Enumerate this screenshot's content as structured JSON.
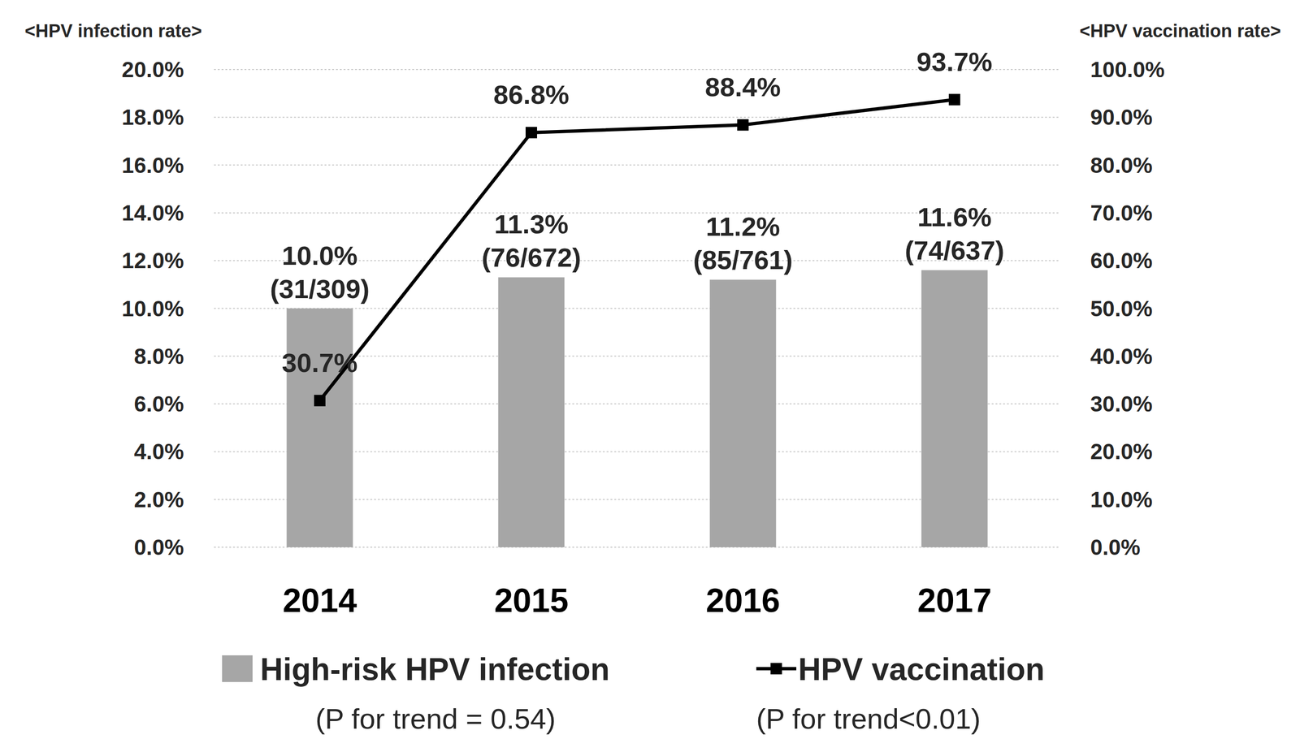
{
  "chart_data": {
    "type": "bar",
    "y_label": "<HPV infection rate>",
    "y2_label": "<HPV vaccination rate>",
    "categories": [
      "2014",
      "2015",
      "2016",
      "2017"
    ],
    "ylim": [
      0,
      20
    ],
    "yticks": [
      {
        "value": 0,
        "label": "0.0%"
      },
      {
        "value": 2,
        "label": "2.0%"
      },
      {
        "value": 4,
        "label": "4.0%"
      },
      {
        "value": 6,
        "label": "6.0%"
      },
      {
        "value": 8,
        "label": "8.0%"
      },
      {
        "value": 10,
        "label": "10.0%"
      },
      {
        "value": 12,
        "label": "12.0%"
      },
      {
        "value": 14,
        "label": "14.0%"
      },
      {
        "value": 16,
        "label": "16.0%"
      },
      {
        "value": 18,
        "label": "18.0%"
      },
      {
        "value": 20,
        "label": "20.0%"
      }
    ],
    "y2lim": [
      0,
      100
    ],
    "y2ticks": [
      {
        "value": 0,
        "label": "0.0%"
      },
      {
        "value": 10,
        "label": "10.0%"
      },
      {
        "value": 20,
        "label": "20.0%"
      },
      {
        "value": 30,
        "label": "30.0%"
      },
      {
        "value": 40,
        "label": "40.0%"
      },
      {
        "value": 50,
        "label": "50.0%"
      },
      {
        "value": 60,
        "label": "60.0%"
      },
      {
        "value": 70,
        "label": "70.0%"
      },
      {
        "value": 80,
        "label": "80.0%"
      },
      {
        "value": 90,
        "label": "90.0%"
      },
      {
        "value": 100,
        "label": "100.0%"
      }
    ],
    "grid": true,
    "data_labels": true,
    "legend": "bottom",
    "series": [
      {
        "name": "High-risk HPV infection",
        "type": "bar",
        "color": "#a6a6a6",
        "values": [
          10.0,
          11.3,
          11.2,
          11.6
        ],
        "value_labels": [
          "10.0%",
          "11.3%",
          "11.2%",
          "11.6%"
        ],
        "fractions": [
          "(31/309)",
          "(76/672)",
          "(85/761)",
          "(74/637)"
        ],
        "p_trend": "(P for trend = 0.54)"
      },
      {
        "name": "HPV vaccination",
        "type": "line",
        "axis": "y2",
        "color": "#000000",
        "marker": "square",
        "line_style": "solid",
        "values": [
          30.7,
          86.8,
          88.4,
          93.7
        ],
        "value_labels": [
          "30.7%",
          "86.8%",
          "88.4%",
          "93.7%"
        ],
        "p_trend": "(P for trend<0.01)"
      }
    ]
  }
}
